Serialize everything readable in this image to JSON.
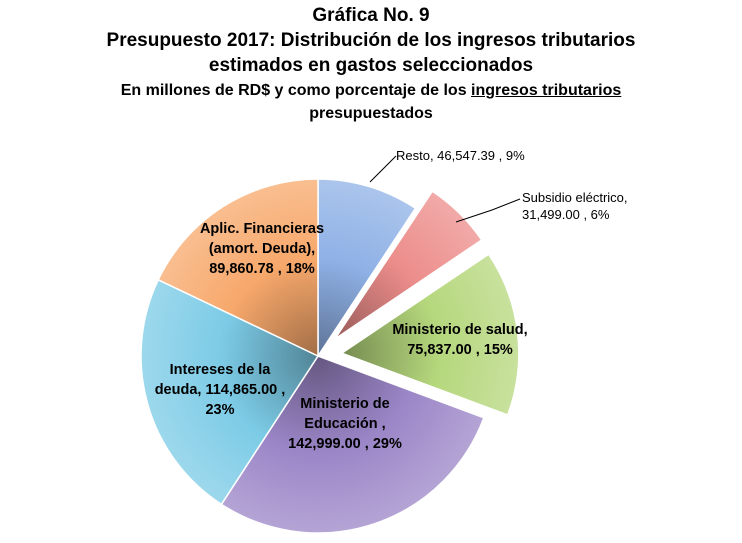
{
  "header": {
    "grafica": "Gráfica No. 9",
    "title_line1": "Presupuesto  2017: Distribución  de los ingresos tributarios",
    "title_line2": "estimados  en gastos seleccionados",
    "subtitle_pre": "En millones de RD$ y como porcentaje de los ",
    "subtitle_underlined": "ingresos tributarios",
    "subtitle_line2": "presupuestados"
  },
  "chart_data": {
    "type": "pie",
    "title": "Presupuesto 2017: Distribución de los ingresos tributarios estimados en gastos seleccionados",
    "subtitle": "En millones de RD$ y como porcentaje de los ingresos tributarios presupuestados",
    "slices": [
      {
        "name": "Resto",
        "value": 46547.39,
        "percent": 9,
        "color": "#8fb1e6",
        "exploded": false,
        "label_lines": [
          "Resto,  46,547.39 , 9%"
        ],
        "label_bold": false
      },
      {
        "name": "Subsidio eléctrico",
        "value": 31499.0,
        "percent": 6,
        "color": "#ec8d8b",
        "exploded": true,
        "label_lines": [
          "Subsidio eléctrico,",
          "31,499.00 , 6%"
        ],
        "label_bold": false
      },
      {
        "name": "Ministerio de salud",
        "value": 75837.0,
        "percent": 15,
        "color": "#b5d77c",
        "exploded": true,
        "label_lines": [
          "Ministerio de salud,",
          "75,837.00  , 15%"
        ],
        "label_bold": true
      },
      {
        "name": "Ministerio de Educación",
        "value": 142999.0,
        "percent": 29,
        "color": "#9b86c7",
        "exploded": false,
        "label_lines": [
          "Ministerio de",
          "Educación ,",
          "142,999.00  , 29%"
        ],
        "label_bold": true
      },
      {
        "name": "Intereses de la deuda",
        "value": 114865.0,
        "percent": 23,
        "color": "#7ccbe6",
        "exploded": false,
        "label_lines": [
          "Intereses de la",
          "deuda,  114,865.00  ,",
          "23%"
        ],
        "label_bold": true
      },
      {
        "name": "Aplic. Financieras (amort. Deuda)",
        "value": 89860.78,
        "percent": 18,
        "color": "#f7a86b",
        "exploded": false,
        "label_lines": [
          "Aplic. Financieras",
          "(amort. Deuda),",
          "89,860.78 , 18%"
        ],
        "label_bold": true
      }
    ]
  }
}
